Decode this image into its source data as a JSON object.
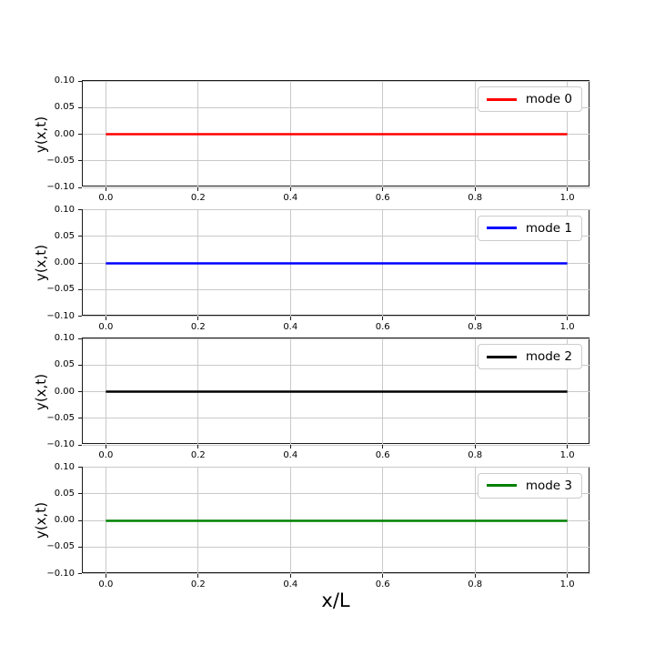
{
  "figure": {
    "background": "#ffffff",
    "xlabel": "x/L"
  },
  "style": {
    "grid_color": "#c9c9c9",
    "spine_color": "#1a1a1a",
    "tick_color": "#1a1a1a",
    "text_color": "#000000",
    "legend_border_color": "#cccccc",
    "legend_background": "#ffffff"
  },
  "chart_data": [
    {
      "type": "line",
      "title": "",
      "xlabel": "",
      "ylabel": "y(x,t)",
      "legend_label": "mode 0",
      "legend_position": "upper right",
      "color": "#ff0000",
      "x": [
        0.0,
        1.0
      ],
      "y": [
        0.0,
        0.0
      ],
      "xlim": [
        -0.05,
        1.05
      ],
      "ylim": [
        -0.1,
        0.1
      ],
      "xticks": [
        0.0,
        0.2,
        0.4,
        0.6,
        0.8,
        1.0
      ],
      "xtick_labels": [
        "0.0",
        "0.2",
        "0.4",
        "0.6",
        "0.8",
        "1.0"
      ],
      "yticks": [
        0.1,
        0.05,
        0.0,
        -0.05,
        -0.1
      ],
      "ytick_labels": [
        "0.10",
        "0.05",
        "0.00",
        "−0.05",
        "−0.10"
      ],
      "grid": true
    },
    {
      "type": "line",
      "title": "",
      "xlabel": "",
      "ylabel": "y(x,t)",
      "legend_label": "mode 1",
      "legend_position": "upper right",
      "color": "#0000ff",
      "x": [
        0.0,
        1.0
      ],
      "y": [
        0.0,
        0.0
      ],
      "xlim": [
        -0.05,
        1.05
      ],
      "ylim": [
        -0.1,
        0.1
      ],
      "xticks": [
        0.0,
        0.2,
        0.4,
        0.6,
        0.8,
        1.0
      ],
      "xtick_labels": [
        "0.0",
        "0.2",
        "0.4",
        "0.6",
        "0.8",
        "1.0"
      ],
      "yticks": [
        0.1,
        0.05,
        0.0,
        -0.05,
        -0.1
      ],
      "ytick_labels": [
        "0.10",
        "0.05",
        "0.00",
        "−0.05",
        "−0.10"
      ],
      "grid": true
    },
    {
      "type": "line",
      "title": "",
      "xlabel": "",
      "ylabel": "y(x,t)",
      "legend_label": "mode 2",
      "legend_position": "upper right",
      "color": "#000000",
      "x": [
        0.0,
        1.0
      ],
      "y": [
        0.0,
        0.0
      ],
      "xlim": [
        -0.05,
        1.05
      ],
      "ylim": [
        -0.1,
        0.1
      ],
      "xticks": [
        0.0,
        0.2,
        0.4,
        0.6,
        0.8,
        1.0
      ],
      "xtick_labels": [
        "0.0",
        "0.2",
        "0.4",
        "0.6",
        "0.8",
        "1.0"
      ],
      "yticks": [
        0.1,
        0.05,
        0.0,
        -0.05,
        -0.1
      ],
      "ytick_labels": [
        "0.10",
        "0.05",
        "0.00",
        "−0.05",
        "−0.10"
      ],
      "grid": true
    },
    {
      "type": "line",
      "title": "",
      "xlabel": "x/L",
      "ylabel": "y(x,t)",
      "legend_label": "mode 3",
      "legend_position": "upper right",
      "color": "#008000",
      "x": [
        0.0,
        1.0
      ],
      "y": [
        0.0,
        0.0
      ],
      "xlim": [
        -0.05,
        1.05
      ],
      "ylim": [
        -0.1,
        0.1
      ],
      "xticks": [
        0.0,
        0.2,
        0.4,
        0.6,
        0.8,
        1.0
      ],
      "xtick_labels": [
        "0.0",
        "0.2",
        "0.4",
        "0.6",
        "0.8",
        "1.0"
      ],
      "yticks": [
        0.1,
        0.05,
        0.0,
        -0.05,
        -0.1
      ],
      "ytick_labels": [
        "0.10",
        "0.05",
        "0.00",
        "−0.05",
        "−0.10"
      ],
      "grid": true
    }
  ]
}
